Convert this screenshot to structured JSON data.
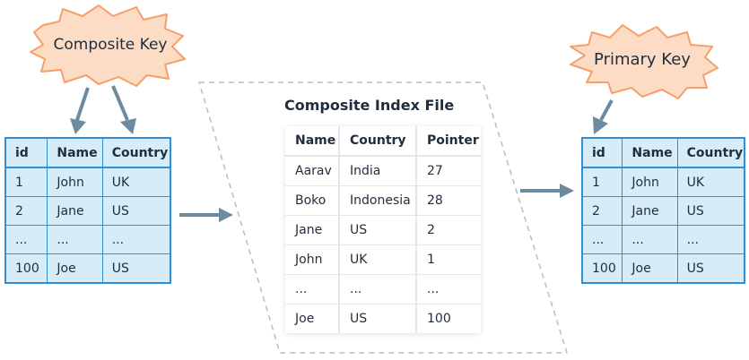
{
  "composite_key_label": "Composite Key",
  "primary_key_label": "Primary Key",
  "index_title": "Composite Index File",
  "left_table": {
    "headers": [
      "id",
      "Name",
      "Country"
    ],
    "rows": [
      [
        "1",
        "John",
        "UK"
      ],
      [
        "2",
        "Jane",
        "US"
      ],
      [
        "...",
        "...",
        "..."
      ],
      [
        "100",
        "Joe",
        "US"
      ]
    ]
  },
  "index_table": {
    "headers": [
      "Name",
      "Country",
      "Pointer"
    ],
    "rows": [
      [
        "Aarav",
        "India",
        "27"
      ],
      [
        "Boko",
        "Indonesia",
        "28"
      ],
      [
        "Jane",
        "US",
        "2"
      ],
      [
        "John",
        "UK",
        "1"
      ],
      [
        "...",
        "...",
        "..."
      ],
      [
        "Joe",
        "US",
        "100"
      ]
    ]
  },
  "right_table": {
    "headers": [
      "id",
      "Name",
      "Country"
    ],
    "rows": [
      [
        "1",
        "John",
        "UK"
      ],
      [
        "2",
        "Jane",
        "US"
      ],
      [
        "...",
        "...",
        "..."
      ],
      [
        "100",
        "Joe",
        "US"
      ]
    ]
  },
  "colors": {
    "star_fill": "#fcdcc4",
    "star_stroke": "#f5a06a",
    "table_fill": "#d6ecfb",
    "table_border": "#2f8ed6",
    "arrow": "#6d8a9e",
    "dash": "#a9c4cc"
  }
}
